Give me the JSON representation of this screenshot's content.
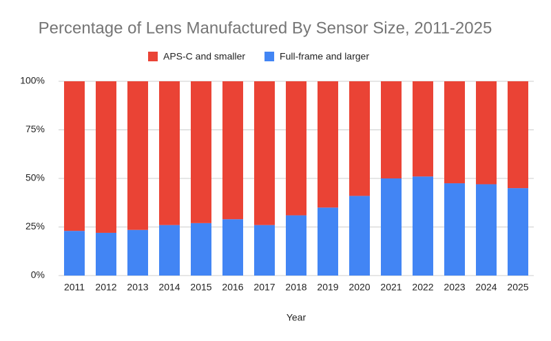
{
  "chart_data": {
    "type": "stacked_bar",
    "title": "Percentage of Lens Manufactured By Sensor Size, 2011-2025",
    "x_label": "Year",
    "categories": [
      "2011",
      "2012",
      "2013",
      "2014",
      "2015",
      "2016",
      "2017",
      "2018",
      "2019",
      "2020",
      "2021",
      "2022",
      "2023",
      "2024",
      "2025"
    ],
    "series": [
      {
        "name": "Full-frame and larger",
        "color": "#4285f4",
        "values": [
          23,
          22,
          23.5,
          26,
          27,
          29,
          26,
          31,
          35,
          41,
          50,
          51,
          47.5,
          47,
          45
        ]
      },
      {
        "name": "APS-C and smaller",
        "color": "#ea4335",
        "values": [
          77,
          78,
          76.5,
          74,
          73,
          71,
          74,
          69,
          65,
          59,
          50,
          49,
          52.5,
          53,
          55
        ]
      }
    ],
    "legend_order": [
      1,
      0
    ],
    "ylim": [
      0,
      100
    ],
    "yticks": [
      {
        "value": 0,
        "label": "0%"
      },
      {
        "value": 25,
        "label": "25%"
      },
      {
        "value": 50,
        "label": "50%"
      },
      {
        "value": 75,
        "label": "75%"
      },
      {
        "value": 100,
        "label": "100%"
      }
    ],
    "grid": true
  }
}
